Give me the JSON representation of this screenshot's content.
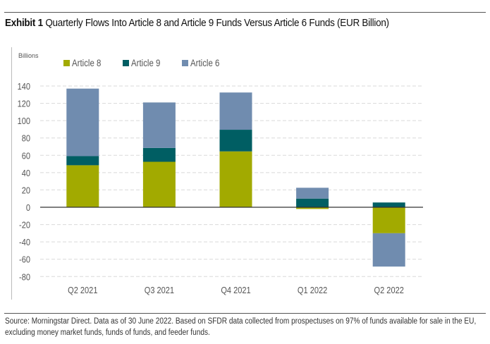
{
  "header": {
    "exhibit_label": "Exhibit 1",
    "title_text": "Quarterly Flows Into Article 8 and Article 9 Funds Versus Article 6 Funds (EUR Billion)"
  },
  "footer": {
    "source": "Source: Morningstar Direct. Data as of 30 June 2022. Based on SFDR data collected from prospectuses on 97% of funds available for sale in the EU, excluding money market funds, funds of funds, and feeder funds."
  },
  "colors": {
    "article8": "#a2aa00",
    "article9": "#005e63",
    "article6": "#708caf",
    "axis_text": "#555555",
    "grid": "#d9d9d9",
    "zero_line": "#333333"
  },
  "chart_data": {
    "type": "bar",
    "stacked": true,
    "title": "Quarterly Flows Into Article 8 and Article 9 Funds Versus Article 6 Funds (EUR Billion)",
    "xlabel": "",
    "ylabel": "Billions",
    "ylim": [
      -80,
      140
    ],
    "yticks": [
      140,
      120,
      100,
      80,
      60,
      40,
      20,
      0,
      -20,
      -40,
      -60,
      -80
    ],
    "grid": true,
    "legend_position": "top",
    "categories": [
      "Q2 2021",
      "Q3 2021",
      "Q4 2021",
      "Q1 2022",
      "Q2 2022"
    ],
    "series": [
      {
        "name": "Article 8",
        "color_key": "article8",
        "values": [
          48.5,
          52.5,
          64.5,
          -2,
          -30
        ]
      },
      {
        "name": "Article 9",
        "color_key": "article9",
        "values": [
          10.5,
          16,
          25,
          10,
          5.5
        ]
      },
      {
        "name": "Article 6",
        "color_key": "article6",
        "values": [
          78,
          52.5,
          43,
          12.5,
          -38.5
        ]
      }
    ]
  }
}
